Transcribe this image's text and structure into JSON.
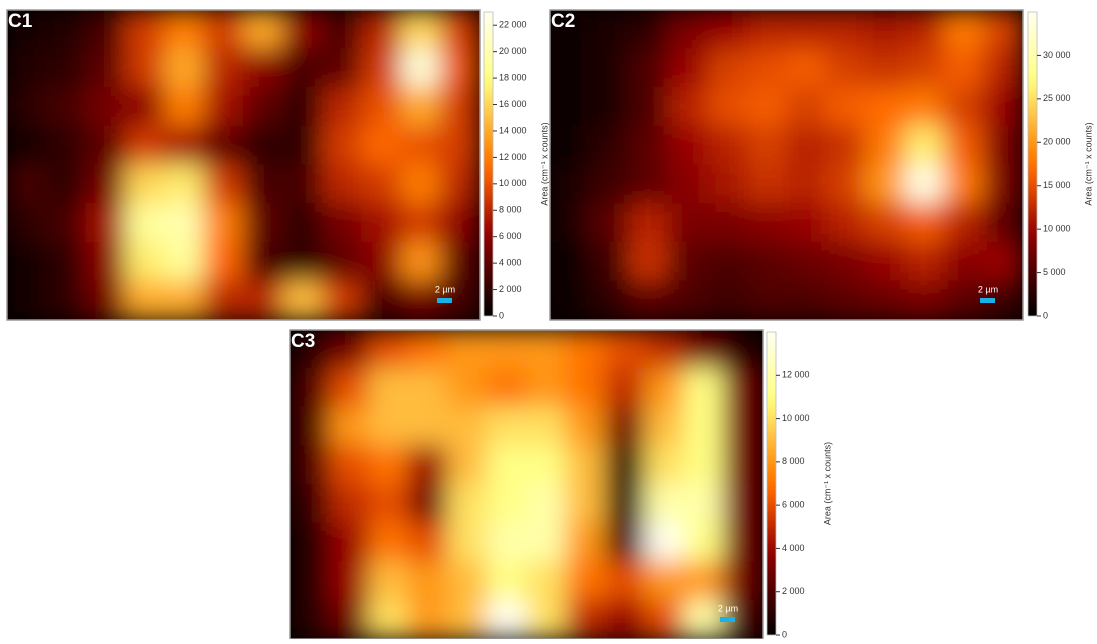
{
  "chart_data": [
    {
      "type": "heatmap",
      "label": "C1",
      "colorbar_label": "Area (cm⁻¹ x counts)",
      "scale_bar": "2 µm",
      "zlim": [
        0,
        23000
      ],
      "yticks": [
        {
          "value": 0,
          "label": "0"
        },
        {
          "value": 2000,
          "label": "2 000"
        },
        {
          "value": 4000,
          "label": "4 000"
        },
        {
          "value": 6000,
          "label": "6 000"
        },
        {
          "value": 8000,
          "label": "8 000"
        },
        {
          "value": 10000,
          "label": "10 000"
        },
        {
          "value": 12000,
          "label": "12 000"
        },
        {
          "value": 14000,
          "label": "14 000"
        },
        {
          "value": 16000,
          "label": "16 000"
        },
        {
          "value": 18000,
          "label": "18 000"
        },
        {
          "value": 20000,
          "label": "20 000"
        },
        {
          "value": 22000,
          "label": "22 000"
        }
      ],
      "z": [
        [
          1000,
          1500,
          3000,
          9000,
          12000,
          9000,
          14000,
          6000,
          3000,
          8000,
          16000,
          9000
        ],
        [
          1500,
          2000,
          4000,
          9000,
          14000,
          8000,
          6000,
          3000,
          4000,
          9000,
          22000,
          10000
        ],
        [
          2000,
          3000,
          5000,
          6000,
          12000,
          7000,
          4000,
          2000,
          8000,
          10000,
          14000,
          9000
        ],
        [
          1000,
          2000,
          4000,
          9000,
          7000,
          4000,
          2000,
          2000,
          9000,
          11000,
          10000,
          9000
        ],
        [
          3000,
          2000,
          5000,
          16000,
          17000,
          9000,
          3000,
          3000,
          8000,
          9000,
          12000,
          8000
        ],
        [
          2000,
          3000,
          7000,
          19000,
          20000,
          12000,
          4000,
          2000,
          5000,
          7000,
          9000,
          6000
        ],
        [
          1000,
          2000,
          6000,
          17000,
          19000,
          11000,
          3000,
          2000,
          4000,
          6000,
          13000,
          4000
        ],
        [
          1000,
          2000,
          5000,
          14000,
          14000,
          8000,
          8000,
          15000,
          9000,
          3000,
          5000,
          3000
        ]
      ]
    },
    {
      "type": "heatmap",
      "label": "C2",
      "colorbar_label": "Area (cm⁻¹ x counts)",
      "scale_bar": "2 µm",
      "zlim": [
        0,
        35000
      ],
      "yticks": [
        {
          "value": 0,
          "label": "0"
        },
        {
          "value": 5000,
          "label": "5 000"
        },
        {
          "value": 10000,
          "label": "10 000"
        },
        {
          "value": 15000,
          "label": "15 000"
        },
        {
          "value": 20000,
          "label": "20 000"
        },
        {
          "value": 25000,
          "label": "25 000"
        },
        {
          "value": 30000,
          "label": "30 000"
        }
      ],
      "z": [
        [
          1000,
          2000,
          3000,
          8000,
          10000,
          12000,
          12000,
          12000,
          11000,
          12000,
          18000,
          14000
        ],
        [
          1000,
          2000,
          5000,
          10000,
          14000,
          15000,
          16000,
          14000,
          13000,
          14000,
          16000,
          12000
        ],
        [
          1000,
          2000,
          5000,
          12000,
          15000,
          16000,
          14000,
          16000,
          17000,
          18000,
          14000,
          10000
        ],
        [
          1000,
          3000,
          6000,
          10000,
          12000,
          14000,
          12000,
          13000,
          18000,
          26000,
          16000,
          8000
        ],
        [
          2000,
          4000,
          6000,
          9000,
          11000,
          13000,
          12000,
          14000,
          20000,
          34000,
          18000,
          8000
        ],
        [
          2000,
          6000,
          12000,
          8000,
          8000,
          9000,
          10000,
          12000,
          14000,
          16000,
          12000,
          6000
        ],
        [
          1000,
          4000,
          13000,
          6000,
          5000,
          6000,
          7000,
          8000,
          10000,
          12000,
          9000,
          10000
        ],
        [
          1000,
          3000,
          6000,
          5000,
          4000,
          5000,
          5000,
          6000,
          7000,
          8000,
          6000,
          4000
        ]
      ]
    },
    {
      "type": "heatmap",
      "label": "C3",
      "colorbar_label": "Area (cm⁻¹ x counts)",
      "scale_bar": "2 µm",
      "zlim": [
        0,
        14000
      ],
      "yticks": [
        {
          "value": 0,
          "label": "0"
        },
        {
          "value": 2000,
          "label": "2 000"
        },
        {
          "value": 4000,
          "label": "4 000"
        },
        {
          "value": 6000,
          "label": "6 000"
        },
        {
          "value": 8000,
          "label": "8 000"
        },
        {
          "value": 10000,
          "label": "10 000"
        },
        {
          "value": 12000,
          "label": "12 000"
        }
      ],
      "z": [
        [
          1000,
          3000,
          6000,
          7000,
          8000,
          8000,
          8000,
          7000,
          6000,
          5000,
          3000,
          1000
        ],
        [
          2000,
          6000,
          9000,
          9000,
          8000,
          7000,
          8000,
          7000,
          5000,
          8000,
          11000,
          3000
        ],
        [
          2000,
          8000,
          9000,
          9000,
          9000,
          10000,
          10000,
          8000,
          3000,
          9000,
          11000,
          3000
        ],
        [
          2000,
          6000,
          7000,
          4000,
          9000,
          11000,
          11000,
          9000,
          1000,
          10000,
          11000,
          3000
        ],
        [
          1500,
          5000,
          6000,
          3000,
          10000,
          11000,
          12000,
          9000,
          1000,
          12000,
          12000,
          3000
        ],
        [
          1000,
          4000,
          7000,
          6000,
          10000,
          12000,
          12000,
          8000,
          2000,
          14000,
          11000,
          3000
        ],
        [
          1000,
          4000,
          9000,
          8000,
          9000,
          11000,
          10000,
          7000,
          6000,
          8000,
          8000,
          3000
        ],
        [
          1000,
          3000,
          10000,
          8000,
          9000,
          14000,
          10000,
          5000,
          4000,
          6000,
          12000,
          2000
        ]
      ]
    }
  ]
}
